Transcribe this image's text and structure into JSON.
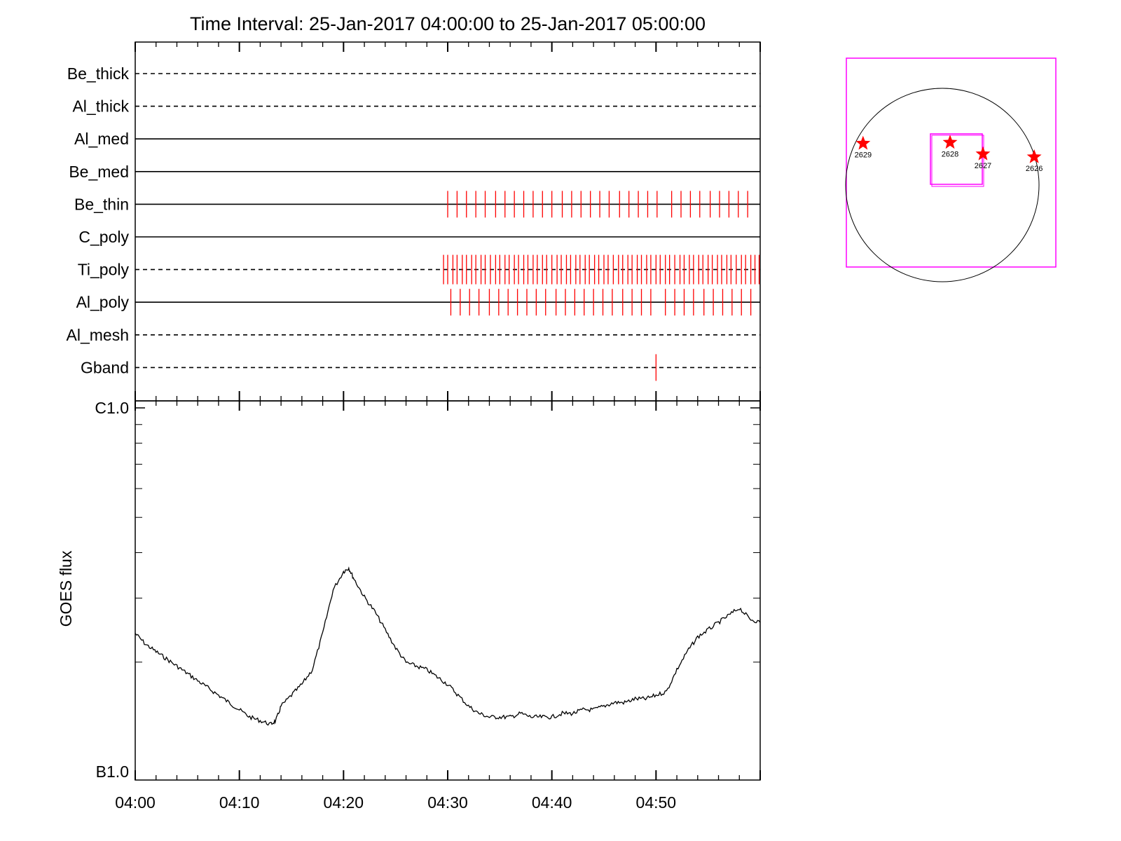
{
  "title": "Time Interval: 25-Jan-2017 04:00:00 to 25-Jan-2017 05:00:00",
  "colors": {
    "axis": "#000000",
    "marks": "#ff0000",
    "fov_box": "#ff00ff",
    "disk": "#000000"
  },
  "chart_data": [
    {
      "type": "line",
      "panel": "observation-timeline",
      "x_units": "minutes after 04:00",
      "rows": [
        {
          "name": "Be_thick",
          "line": "dashed",
          "marks": []
        },
        {
          "name": "Al_thick",
          "line": "dashed",
          "marks": []
        },
        {
          "name": "Al_med",
          "line": "solid",
          "marks": []
        },
        {
          "name": "Be_med",
          "line": "solid",
          "marks": []
        },
        {
          "name": "Be_thin",
          "line": "solid",
          "marks": [
            30.0,
            30.9,
            31.8,
            32.7,
            33.6,
            34.6,
            35.5,
            36.4,
            37.3,
            38.2,
            39.1,
            40.0,
            41.0,
            41.9,
            42.8,
            43.7,
            44.6,
            45.5,
            46.5,
            47.4,
            48.3,
            49.2,
            50.1,
            51.5,
            52.4,
            53.3,
            54.2,
            55.2,
            56.1,
            57.0,
            57.9,
            58.8
          ]
        },
        {
          "name": "C_poly",
          "line": "solid",
          "marks": []
        },
        {
          "name": "Ti_poly",
          "line": "dashed",
          "marks": [
            29.6,
            30.0,
            30.5,
            30.9,
            31.4,
            31.8,
            32.3,
            32.7,
            33.2,
            33.6,
            34.1,
            34.6,
            35.0,
            35.5,
            35.9,
            36.4,
            36.8,
            37.3,
            37.7,
            38.2,
            38.6,
            39.1,
            39.5,
            40.0,
            40.5,
            40.9,
            41.4,
            41.8,
            42.3,
            42.7,
            43.2,
            43.6,
            44.1,
            44.5,
            45.0,
            45.4,
            45.9,
            46.4,
            46.8,
            47.3,
            47.7,
            48.2,
            48.6,
            49.1,
            49.5,
            50.0,
            50.4,
            50.9,
            51.3,
            51.8,
            52.3,
            52.7,
            53.2,
            53.6,
            54.1,
            54.5,
            55.0,
            55.4,
            55.9,
            56.3,
            56.8,
            57.2,
            57.7,
            58.2,
            58.6,
            59.1,
            59.5,
            59.9
          ]
        },
        {
          "name": "Al_poly",
          "line": "solid",
          "marks": [
            30.3,
            31.2,
            32.1,
            33.0,
            34.0,
            34.9,
            35.8,
            36.7,
            37.6,
            38.5,
            39.4,
            40.4,
            41.3,
            42.2,
            43.1,
            44.0,
            44.9,
            45.8,
            46.8,
            47.7,
            48.6,
            49.5,
            50.9,
            51.8,
            52.7,
            53.6,
            54.6,
            55.5,
            56.4,
            57.3,
            58.2,
            59.1
          ]
        },
        {
          "name": "Al_mesh",
          "line": "dashed",
          "marks": []
        },
        {
          "name": "Gband",
          "line": "dashed",
          "marks": [
            50.0
          ]
        }
      ]
    },
    {
      "type": "line",
      "panel": "goes-flux",
      "ylabel": "GOES flux",
      "y_ticks": [
        "C1.0",
        "B1.0"
      ],
      "x_ticks": [
        "04:00",
        "04:10",
        "04:20",
        "04:30",
        "04:40",
        "04:50"
      ],
      "xlim": [
        0,
        60
      ],
      "ylim_log10_flux": [
        -7,
        -6
      ],
      "series": [
        {
          "x": [
            0,
            1,
            2,
            3,
            4,
            5,
            6,
            7,
            8,
            9,
            10,
            11,
            12,
            13,
            13.5,
            14,
            15,
            16,
            17,
            18,
            19,
            20,
            20.5,
            21,
            22,
            23,
            24,
            25,
            26,
            27,
            28,
            29,
            30,
            31,
            32,
            33,
            34,
            35,
            36,
            37,
            38,
            39,
            40,
            41,
            42,
            43,
            44,
            45,
            46,
            47,
            48,
            49,
            50,
            51,
            52,
            53,
            54,
            55,
            56,
            57,
            58,
            59,
            60
          ],
          "y": [
            -6.62,
            -6.65,
            -6.67,
            -6.69,
            -6.71,
            -6.73,
            -6.75,
            -6.77,
            -6.79,
            -6.81,
            -6.83,
            -6.85,
            -6.86,
            -6.87,
            -6.86,
            -6.82,
            -6.79,
            -6.76,
            -6.72,
            -6.62,
            -6.5,
            -6.45,
            -6.44,
            -6.47,
            -6.52,
            -6.56,
            -6.61,
            -6.66,
            -6.7,
            -6.71,
            -6.72,
            -6.74,
            -6.76,
            -6.79,
            -6.82,
            -6.84,
            -6.85,
            -6.85,
            -6.85,
            -6.84,
            -6.85,
            -6.85,
            -6.85,
            -6.84,
            -6.84,
            -6.83,
            -6.83,
            -6.82,
            -6.81,
            -6.81,
            -6.8,
            -6.8,
            -6.79,
            -6.78,
            -6.72,
            -6.67,
            -6.63,
            -6.61,
            -6.59,
            -6.57,
            -6.55,
            -6.58,
            -6.59
          ]
        }
      ]
    },
    {
      "type": "scatter",
      "panel": "solar-disk-locator",
      "points": [
        {
          "label": "2629",
          "x": -0.82,
          "y": 0.43
        },
        {
          "label": "2628",
          "x": 0.08,
          "y": 0.44
        },
        {
          "label": "2627",
          "x": 0.42,
          "y": 0.32
        },
        {
          "label": "2626",
          "x": 0.95,
          "y": 0.29
        }
      ]
    }
  ]
}
